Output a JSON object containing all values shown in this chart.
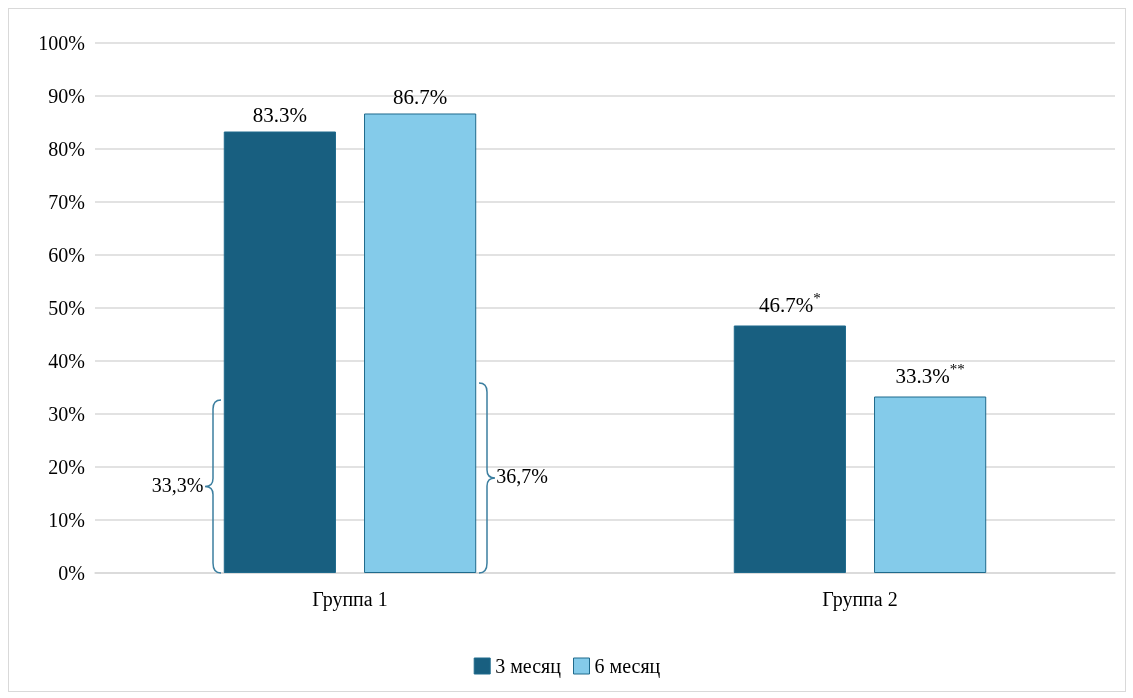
{
  "chart_data": {
    "type": "bar",
    "categories": [
      "Группа 1",
      "Группа 2"
    ],
    "series": [
      {
        "name": "3 месяц",
        "color": "#185f80",
        "values": [
          83.3,
          46.7
        ],
        "value_labels": [
          "83.3%",
          "46.7%$^{*}$"
        ]
      },
      {
        "name": "6 месяц",
        "color": "#84cbea",
        "values": [
          86.7,
          33.3
        ],
        "value_labels": [
          "86.7%",
          "33.3%$^{**}$"
        ]
      }
    ],
    "ylim": [
      0,
      100
    ],
    "yticks": [
      {
        "value": 0,
        "label": "0%"
      },
      {
        "value": 10,
        "label": "10%"
      },
      {
        "value": 20,
        "label": "20%"
      },
      {
        "value": 30,
        "label": "30%"
      },
      {
        "value": 40,
        "label": "40%"
      },
      {
        "value": 50,
        "label": "50%"
      },
      {
        "value": 60,
        "label": "60%"
      },
      {
        "value": 70,
        "label": "70%"
      },
      {
        "value": 80,
        "label": "80%"
      },
      {
        "value": 90,
        "label": "90%"
      },
      {
        "value": 100,
        "label": "100%"
      }
    ],
    "grid": "y",
    "legend": "bottom",
    "annotations": [
      "33,3%",
      "36,7%"
    ]
  }
}
